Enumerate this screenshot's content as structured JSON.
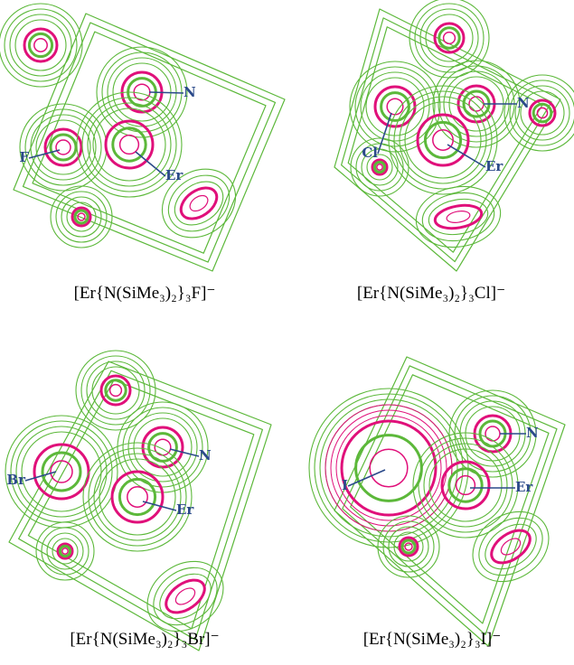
{
  "panels": [
    {
      "caption": "[Er{N(SiMe₃)₂}₃F]⁻",
      "labels": [
        "N",
        "F",
        "Er"
      ]
    },
    {
      "caption": "[Er{N(SiMe₃)₂}₃Cl]⁻",
      "labels": [
        "N",
        "Cl",
        "Er"
      ]
    },
    {
      "caption": "[Er{N(SiMe₃)₂}₃Br]⁻",
      "labels": [
        "Br",
        "N",
        "Er"
      ]
    },
    {
      "caption": "[Er{N(SiMe₃)₂}₃I]⁻",
      "labels": [
        "N",
        "I",
        "Er"
      ]
    }
  ]
}
